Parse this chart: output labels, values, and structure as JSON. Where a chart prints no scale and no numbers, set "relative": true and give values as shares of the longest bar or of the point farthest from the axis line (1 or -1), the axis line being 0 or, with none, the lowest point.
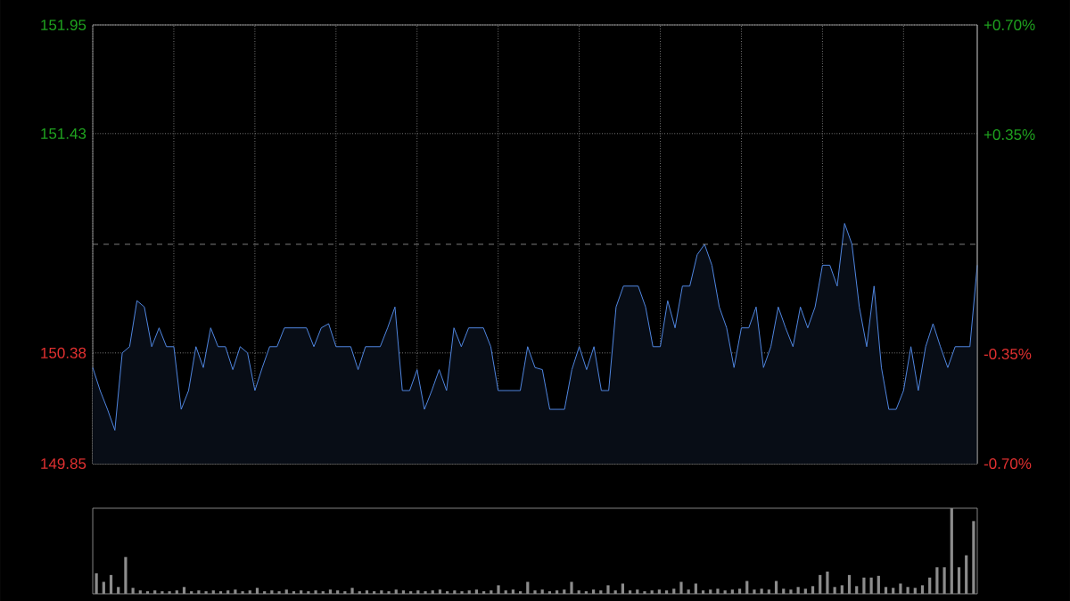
{
  "chart_data": [
    {
      "type": "area",
      "tick_labels": "y",
      "grid": true,
      "categories": [
        null,
        null,
        null,
        null,
        null,
        null,
        null,
        null,
        null,
        null,
        null,
        null,
        null,
        null,
        null,
        null,
        null,
        null,
        null,
        null,
        null,
        null,
        null,
        null,
        null,
        null,
        null,
        null,
        null,
        null,
        null,
        null,
        null,
        null,
        null,
        null,
        null,
        null,
        null,
        null,
        null,
        null,
        null,
        null,
        null,
        null,
        null,
        null,
        null,
        null,
        null,
        null,
        null,
        null,
        null,
        null,
        null,
        null,
        null,
        null,
        null,
        null,
        null,
        null,
        null,
        null,
        null,
        null,
        null,
        null,
        null,
        null,
        null,
        null,
        null,
        null,
        null,
        null,
        null,
        null,
        null,
        null,
        null,
        null,
        null,
        null,
        null,
        null,
        null,
        null,
        null,
        null,
        null,
        null,
        null,
        null,
        null,
        null,
        null,
        null,
        null,
        null,
        null,
        null,
        null,
        null,
        null,
        null,
        null,
        null,
        null,
        null,
        null,
        null,
        null,
        null,
        null,
        null,
        null,
        null,
        null
      ],
      "ylim": [
        149.85,
        151.95
      ],
      "yticks": [
        149.85,
        150.38,
        151.43,
        151.95
      ],
      "y2lim": [
        -0.7,
        0.7
      ],
      "y2ticks": [
        {
          "value": -0.7,
          "label": "-0.70%"
        },
        {
          "value": -0.35,
          "label": "-0.35%"
        },
        {
          "value": 0.35,
          "label": "+0.35%"
        },
        {
          "value": 0.7,
          "label": "+0.70%"
        }
      ],
      "ref_lines": [
        {
          "axis": "y",
          "value": 150.9,
          "line_style": "dashed",
          "color": "#9a9a9a"
        }
      ],
      "series": [
        {
          "color": "#4f86e0",
          "values": [
            150.31,
            150.2,
            150.11,
            150.01,
            150.38,
            150.41,
            150.63,
            150.6,
            150.41,
            150.5,
            150.41,
            150.41,
            150.11,
            150.2,
            150.41,
            150.31,
            150.5,
            150.41,
            150.41,
            150.3,
            150.41,
            150.38,
            150.2,
            150.31,
            150.41,
            150.41,
            150.5,
            150.5,
            150.5,
            150.5,
            150.41,
            150.5,
            150.52,
            150.41,
            150.41,
            150.41,
            150.3,
            150.41,
            150.41,
            150.41,
            150.5,
            150.6,
            150.2,
            150.2,
            150.3,
            150.11,
            150.2,
            150.3,
            150.2,
            150.5,
            150.41,
            150.5,
            150.5,
            150.5,
            150.41,
            150.2,
            150.2,
            150.2,
            150.2,
            150.41,
            150.31,
            150.3,
            150.11,
            150.11,
            150.11,
            150.3,
            150.41,
            150.3,
            150.41,
            150.2,
            150.2,
            150.6,
            150.7,
            150.7,
            150.7,
            150.6,
            150.41,
            150.41,
            150.63,
            150.5,
            150.7,
            150.7,
            150.85,
            150.9,
            150.8,
            150.6,
            150.5,
            150.31,
            150.5,
            150.5,
            150.6,
            150.31,
            150.41,
            150.6,
            150.5,
            150.41,
            150.6,
            150.5,
            150.6,
            150.8,
            150.8,
            150.7,
            151.0,
            150.9,
            150.6,
            150.41,
            150.7,
            150.31,
            150.11,
            150.11,
            150.2,
            150.41,
            150.2,
            150.41,
            150.52,
            150.41,
            150.31,
            150.41,
            150.41,
            150.41,
            150.8
          ]
        }
      ]
    },
    {
      "type": "bar",
      "relative": true,
      "tick_labels": false,
      "categories": [
        null,
        null,
        null,
        null,
        null,
        null,
        null,
        null,
        null,
        null,
        null,
        null,
        null,
        null,
        null,
        null,
        null,
        null,
        null,
        null,
        null,
        null,
        null,
        null,
        null,
        null,
        null,
        null,
        null,
        null,
        null,
        null,
        null,
        null,
        null,
        null,
        null,
        null,
        null,
        null,
        null,
        null,
        null,
        null,
        null,
        null,
        null,
        null,
        null,
        null,
        null,
        null,
        null,
        null,
        null,
        null,
        null,
        null,
        null,
        null,
        null,
        null,
        null,
        null,
        null,
        null,
        null,
        null,
        null,
        null,
        null,
        null,
        null,
        null,
        null,
        null,
        null,
        null,
        null,
        null,
        null,
        null,
        null,
        null,
        null,
        null,
        null,
        null,
        null,
        null,
        null,
        null,
        null,
        null,
        null,
        null,
        null,
        null,
        null,
        null,
        null,
        null,
        null,
        null,
        null,
        null,
        null,
        null,
        null,
        null,
        null,
        null,
        null,
        null,
        null,
        null,
        null,
        null,
        null,
        null,
        null
      ],
      "series": [
        {
          "color": "#8c8c8c",
          "values": [
            0.24,
            0.14,
            0.22,
            0.08,
            0.43,
            0.07,
            0.04,
            0.03,
            0.04,
            0.03,
            0.03,
            0.04,
            0.08,
            0.03,
            0.04,
            0.03,
            0.04,
            0.03,
            0.04,
            0.05,
            0.03,
            0.04,
            0.07,
            0.03,
            0.04,
            0.03,
            0.05,
            0.03,
            0.04,
            0.03,
            0.04,
            0.03,
            0.05,
            0.04,
            0.03,
            0.07,
            0.03,
            0.04,
            0.03,
            0.04,
            0.03,
            0.05,
            0.04,
            0.03,
            0.04,
            0.03,
            0.04,
            0.05,
            0.03,
            0.04,
            0.03,
            0.04,
            0.05,
            0.03,
            0.04,
            0.1,
            0.04,
            0.05,
            0.03,
            0.14,
            0.04,
            0.05,
            0.03,
            0.04,
            0.05,
            0.14,
            0.04,
            0.03,
            0.05,
            0.04,
            0.1,
            0.04,
            0.12,
            0.04,
            0.05,
            0.03,
            0.04,
            0.05,
            0.04,
            0.06,
            0.14,
            0.05,
            0.12,
            0.04,
            0.05,
            0.06,
            0.04,
            0.05,
            0.06,
            0.15,
            0.05,
            0.06,
            0.05,
            0.15,
            0.06,
            0.05,
            0.08,
            0.06,
            0.09,
            0.22,
            0.26,
            0.08,
            0.1,
            0.22,
            0.09,
            0.19,
            0.19,
            0.21,
            0.08,
            0.07,
            0.12,
            0.08,
            0.07,
            0.1,
            0.19,
            0.31,
            0.31,
            1,
            0.31,
            0.45,
            0.85
          ]
        }
      ]
    }
  ]
}
